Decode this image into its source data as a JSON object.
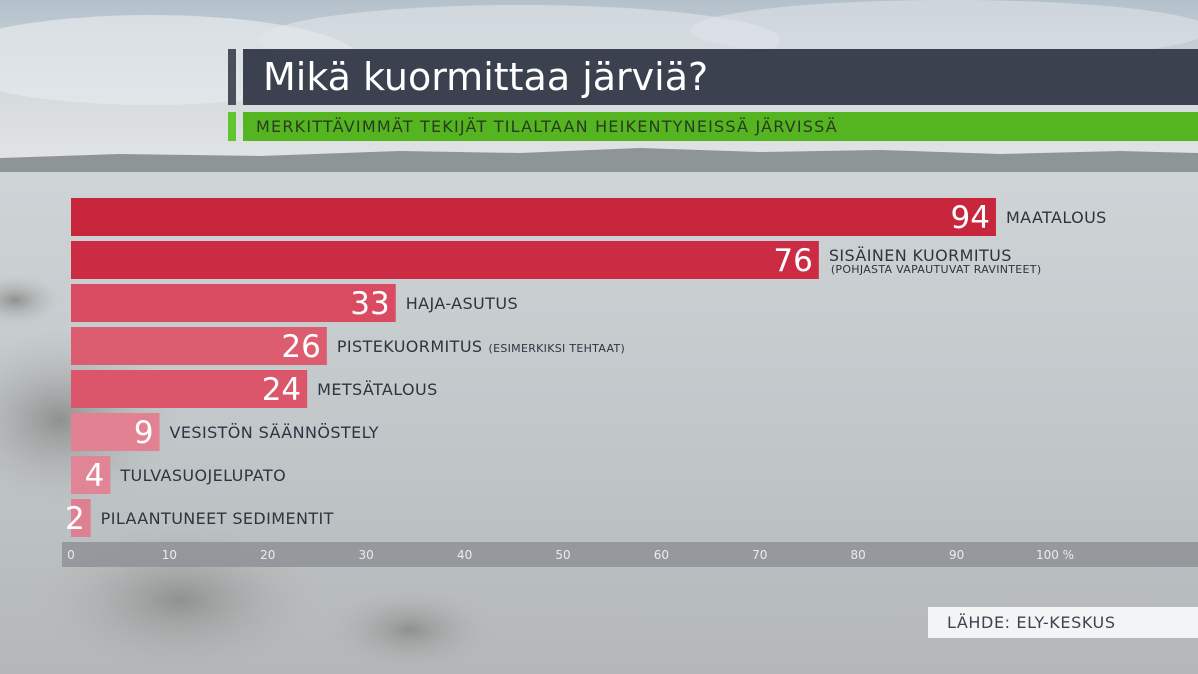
{
  "title": "Mikä kuormittaa järviä?",
  "subtitle": "MERKITTÄVIMMÄT TEKIJÄT TILALTAAN HEIKENTYNEISSÄ JÄRVISSÄ",
  "source": "LÄHDE: ELY-KESKUS",
  "colors": {
    "title_bg": "#3c4150",
    "subtitle_bg": "#54b521",
    "bar_colors": [
      "#c8263d",
      "#cb2c43",
      "#d94b61",
      "#dd5d70",
      "#dc566b",
      "#e28192",
      "#e18496",
      "#df7f92"
    ],
    "axis_bg": "#8e9297"
  },
  "chart_data": {
    "type": "bar",
    "orientation": "horizontal",
    "categories": [
      "MAATALOUS",
      "SISÄINEN KUORMITUS",
      "HAJA-ASUTUS",
      "PISTEKUORMITUS",
      "METSÄTALOUS",
      "VESISTÖN SÄÄNNÖSTELY",
      "TULVASUOJELUPATO",
      "PILAANTUNEET SEDIMENTIT"
    ],
    "notes": [
      "",
      "(POHJASTA VAPAUTUVAT RAVINTEET)",
      "",
      "(ESIMERKIKSI TEHTAAT)",
      "",
      "",
      "",
      ""
    ],
    "values": [
      94,
      76,
      33,
      26,
      24,
      9,
      4,
      2
    ],
    "value_labels": [
      "94",
      "76",
      "33",
      "26",
      "24",
      "9",
      "4",
      "2"
    ],
    "xlim": [
      0,
      100
    ],
    "tick_labels": [
      "0",
      "10",
      "20",
      "30",
      "40",
      "50",
      "60",
      "70",
      "80",
      "90",
      "100 %"
    ],
    "grid": false,
    "legend": "none"
  }
}
